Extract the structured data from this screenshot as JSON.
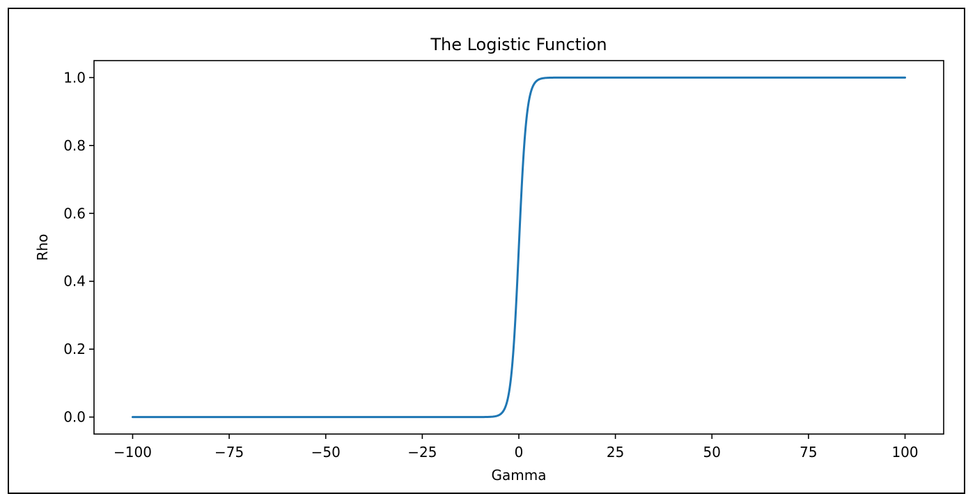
{
  "chart_data": {
    "type": "line",
    "title": "The Logistic Function",
    "xlabel": "Gamma",
    "ylabel": "Rho",
    "xlim": [
      -110,
      110
    ],
    "ylim": [
      -0.05,
      1.05
    ],
    "x_ticks": [
      -100,
      -75,
      -50,
      -25,
      0,
      25,
      50,
      75,
      100
    ],
    "x_tick_labels": [
      "−100",
      "−75",
      "−50",
      "−25",
      "0",
      "25",
      "50",
      "75",
      "100"
    ],
    "y_ticks": [
      0.0,
      0.2,
      0.4,
      0.6,
      0.8,
      1.0
    ],
    "y_tick_labels": [
      "0.0",
      "0.2",
      "0.4",
      "0.6",
      "0.8",
      "1.0"
    ],
    "grid": false,
    "series": [
      {
        "color": "#1f77b4",
        "x": [
          -100,
          -75,
          -50,
          -25,
          -10,
          -8,
          -6,
          -5,
          -4,
          -3,
          -2,
          -1,
          0,
          1,
          2,
          3,
          4,
          5,
          6,
          8,
          10,
          25,
          50,
          75,
          100
        ],
        "y": [
          0.0,
          0.0,
          0.0,
          0.0,
          0.0,
          0.0003,
          0.0025,
          0.0067,
          0.018,
          0.047,
          0.119,
          0.269,
          0.5,
          0.731,
          0.881,
          0.953,
          0.982,
          0.9933,
          0.9975,
          0.9997,
          1.0,
          1.0,
          1.0,
          1.0,
          1.0
        ]
      }
    ]
  }
}
